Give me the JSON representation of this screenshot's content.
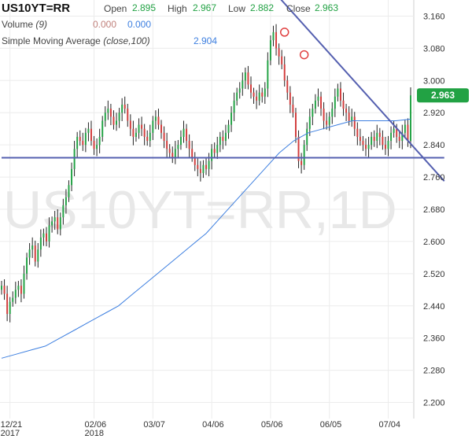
{
  "header": {
    "symbol": "US10YT=RR",
    "open_label": "Open",
    "open": "2.895",
    "high_label": "High",
    "high": "2.967",
    "low_label": "Low",
    "low": "2.882",
    "close_label": "Close",
    "close": "2.963",
    "volume_label": "Volume",
    "volume_period": "(9)",
    "volume_v1": "0.000",
    "volume_v2": "0.000",
    "sma_label": "Simple Moving Average",
    "sma_params": "(close,100)",
    "sma_value": "2.904"
  },
  "watermark": "US10YT=RR,1D",
  "price_tag": "2.963",
  "colors": {
    "up": "#22a244",
    "down": "#d23c3c",
    "sma": "#3d7fe0",
    "trend": "#5560b0",
    "tag": "#22a244"
  },
  "chart_data": {
    "type": "candlestick",
    "ylim": [
      2.16,
      3.2
    ],
    "yticks": [
      "3.160",
      "3.080",
      "3.000",
      "2.920",
      "2.840",
      "2.760",
      "2.680",
      "2.600",
      "2.520",
      "2.440",
      "2.360",
      "2.280",
      "2.200"
    ],
    "xticks": [
      {
        "label": "12/21",
        "sub": "2017",
        "i": 3
      },
      {
        "label": "02/06",
        "sub": "2018",
        "i": 33
      },
      {
        "label": "03/07",
        "sub": "",
        "i": 54
      },
      {
        "label": "04/06",
        "sub": "",
        "i": 75
      },
      {
        "label": "05/06",
        "sub": "",
        "i": 96
      },
      {
        "label": "06/05",
        "sub": "",
        "i": 117
      },
      {
        "label": "07/04",
        "sub": "",
        "i": 138
      }
    ],
    "closes": [
      2.49,
      2.47,
      2.42,
      2.45,
      2.46,
      2.48,
      2.49,
      2.47,
      2.52,
      2.56,
      2.58,
      2.59,
      2.55,
      2.58,
      2.61,
      2.62,
      2.6,
      2.64,
      2.65,
      2.66,
      2.63,
      2.66,
      2.69,
      2.71,
      2.74,
      2.78,
      2.83,
      2.86,
      2.85,
      2.84,
      2.87,
      2.88,
      2.85,
      2.83,
      2.84,
      2.86,
      2.9,
      2.92,
      2.93,
      2.91,
      2.89,
      2.9,
      2.92,
      2.94,
      2.93,
      2.9,
      2.88,
      2.86,
      2.87,
      2.89,
      2.88,
      2.86,
      2.85,
      2.87,
      2.9,
      2.91,
      2.89,
      2.87,
      2.85,
      2.83,
      2.82,
      2.81,
      2.83,
      2.84,
      2.86,
      2.88,
      2.85,
      2.83,
      2.81,
      2.79,
      2.78,
      2.77,
      2.79,
      2.78,
      2.8,
      2.83,
      2.82,
      2.84,
      2.86,
      2.85,
      2.87,
      2.89,
      2.92,
      2.95,
      2.97,
      2.98,
      3.0,
      3.02,
      2.99,
      2.97,
      2.96,
      2.95,
      2.97,
      2.96,
      2.98,
      3.05,
      3.1,
      3.12,
      3.08,
      3.06,
      3.04,
      3.0,
      2.97,
      2.94,
      2.92,
      2.86,
      2.8,
      2.79,
      2.84,
      2.88,
      2.91,
      2.93,
      2.95,
      2.96,
      2.93,
      2.9,
      2.89,
      2.91,
      2.93,
      2.96,
      2.98,
      2.95,
      2.93,
      2.92,
      2.9,
      2.91,
      2.88,
      2.86,
      2.85,
      2.84,
      2.83,
      2.84,
      2.86,
      2.85,
      2.87,
      2.86,
      2.84,
      2.83,
      2.85,
      2.87,
      2.88,
      2.86,
      2.85,
      2.87,
      2.89,
      2.85,
      2.963
    ],
    "sma100": [
      2.31,
      2.32,
      2.33,
      2.34,
      2.36,
      2.38,
      2.4,
      2.42,
      2.44,
      2.47,
      2.5,
      2.53,
      2.56,
      2.59,
      2.62,
      2.66,
      2.7,
      2.74,
      2.78,
      2.82,
      2.85,
      2.87,
      2.88,
      2.89,
      2.9,
      2.9,
      2.9,
      2.9,
      2.904
    ],
    "trendlines": [
      {
        "from": [
          96,
          3.23
        ],
        "to": [
          158,
          2.75
        ]
      },
      {
        "from": [
          0,
          2.808
        ],
        "to": [
          158,
          2.808
        ]
      }
    ],
    "markers": [
      {
        "i": 101,
        "value": 3.12
      },
      {
        "i": 108,
        "value": 3.064
      }
    ]
  }
}
